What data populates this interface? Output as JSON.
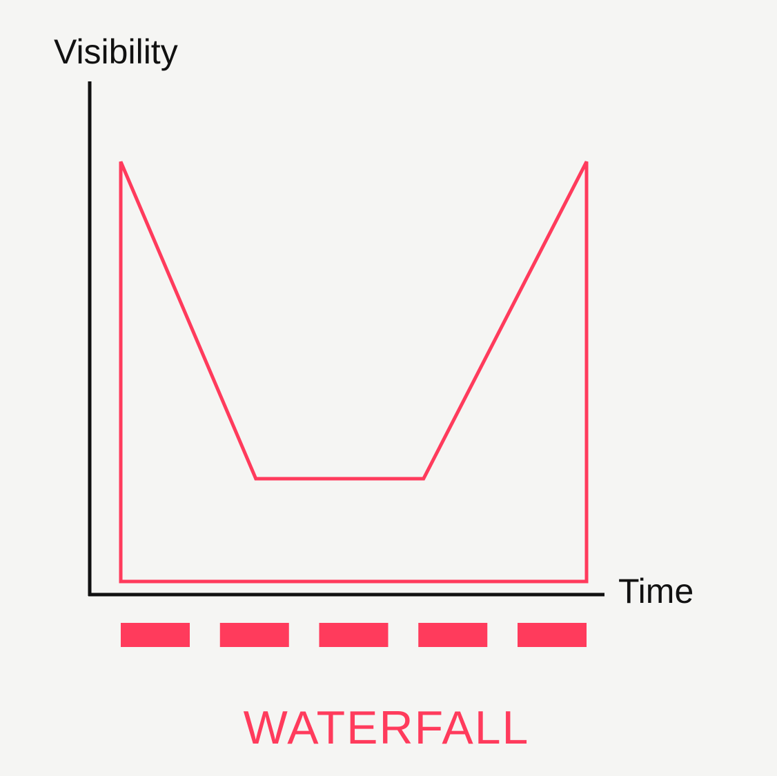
{
  "diagram": {
    "y_axis_label": "Visibility",
    "x_axis_label": "Time",
    "caption": "WATERFALL",
    "phase_count": 5,
    "curve_points": [
      {
        "time": 0,
        "visibility": 0.98
      },
      {
        "time": 0.29,
        "visibility": 0.24
      },
      {
        "time": 0.65,
        "visibility": 0.24
      },
      {
        "time": 1.0,
        "visibility": 0.98
      }
    ]
  },
  "colors": {
    "background": "#f5f5f3",
    "axis": "#111111",
    "accent": "#ff3b5c"
  }
}
